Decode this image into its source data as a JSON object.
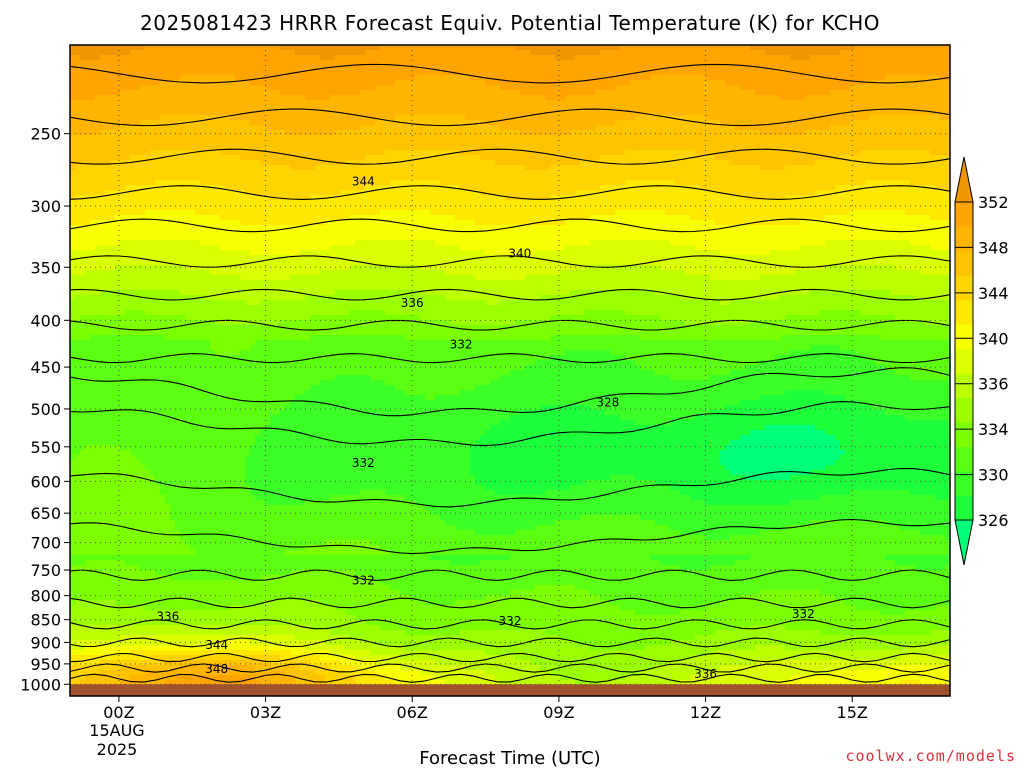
{
  "chart_data": {
    "type": "heatmap",
    "title": "2025081423 HRRR Forecast Equiv. Potential Temperature (K) for KCHO",
    "xlabel": "Forecast Time (UTC)",
    "ylabel": "",
    "x_hours": [
      -1,
      17
    ],
    "y_pressure_hPa": [
      200,
      1030
    ],
    "x_ticks": [
      {
        "hour": 0,
        "label": "00Z"
      },
      {
        "hour": 3,
        "label": "03Z"
      },
      {
        "hour": 6,
        "label": "06Z"
      },
      {
        "hour": 9,
        "label": "09Z"
      },
      {
        "hour": 12,
        "label": "12Z"
      },
      {
        "hour": 15,
        "label": "15Z"
      }
    ],
    "date_lines": [
      "15AUG",
      "2025"
    ],
    "y_ticks": [
      250,
      300,
      350,
      400,
      450,
      500,
      550,
      600,
      650,
      700,
      750,
      800,
      850,
      900,
      950,
      1000
    ],
    "colorbar": {
      "levels": [
        326,
        328,
        330,
        332,
        334,
        336,
        338,
        340,
        342,
        344,
        346,
        348,
        350,
        352
      ],
      "labels": [
        "326",
        "330",
        "334",
        "336",
        "340",
        "344",
        "348",
        "352"
      ],
      "colors": [
        "#1eff3c",
        "#3cff28",
        "#5cff12",
        "#7cff00",
        "#9cff00",
        "#bcff00",
        "#dcff00",
        "#f8ff00",
        "#ffe800",
        "#ffd400",
        "#ffc400",
        "#ffb400",
        "#ffa400"
      ],
      "under_color": "#00ff78",
      "over_color": "#f09600"
    },
    "ground_color": "#a0522d",
    "contour_labels": [
      {
        "text": "344",
        "hour": 5.0,
        "p": 282
      },
      {
        "text": "340",
        "hour": 8.2,
        "p": 338
      },
      {
        "text": "336",
        "hour": 6.0,
        "p": 383
      },
      {
        "text": "332",
        "hour": 7.0,
        "p": 425
      },
      {
        "text": "328",
        "hour": 10.0,
        "p": 492
      },
      {
        "text": "332",
        "hour": 5.0,
        "p": 573
      },
      {
        "text": "332",
        "hour": 5.0,
        "p": 770
      },
      {
        "text": "336",
        "hour": 1.0,
        "p": 843
      },
      {
        "text": "332",
        "hour": 8.0,
        "p": 853
      },
      {
        "text": "332",
        "hour": 14.0,
        "p": 838
      },
      {
        "text": "344",
        "hour": 2.0,
        "p": 906
      },
      {
        "text": "348",
        "hour": 2.0,
        "p": 962
      },
      {
        "text": "336",
        "hour": 12.0,
        "p": 975
      }
    ],
    "grid": true
  },
  "credit": {
    "text": "coolwx.com/models",
    "color": "#e0303c"
  }
}
